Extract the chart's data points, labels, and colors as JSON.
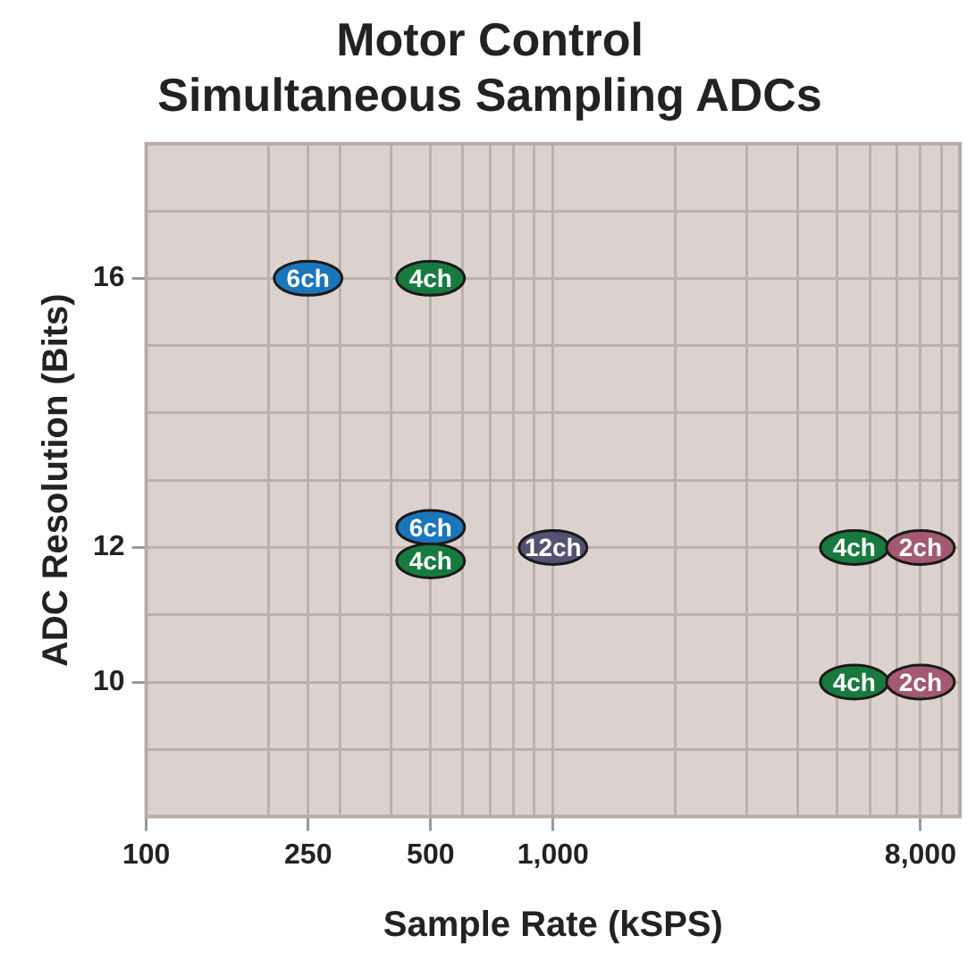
{
  "chart_data": {
    "type": "scatter",
    "title": "Motor Control",
    "subtitle": "Simultaneous Sampling ADCs",
    "xlabel": "Sample Rate (kSPS)",
    "ylabel": "ADC Resolution (Bits)",
    "log": "x",
    "grid": true,
    "legend": false,
    "marker": "circle",
    "xlim": [
      100,
      10000
    ],
    "xticks": [
      100,
      {
        "value": 200,
        "label": null
      },
      250,
      {
        "value": 300,
        "label": null
      },
      {
        "value": 400,
        "label": null
      },
      500,
      {
        "value": 600,
        "label": null
      },
      {
        "value": 700,
        "label": null
      },
      {
        "value": 800,
        "label": null
      },
      {
        "value": 900,
        "label": null
      },
      {
        "value": 1000,
        "label": "1,000"
      },
      {
        "value": 2000,
        "label": null
      },
      {
        "value": 3000,
        "label": null
      },
      {
        "value": 4000,
        "label": null
      },
      {
        "value": 5000,
        "label": null
      },
      {
        "value": 6000,
        "label": null
      },
      {
        "value": 7000,
        "label": null
      },
      {
        "value": 8000,
        "label": "8,000"
      },
      {
        "value": 9000,
        "label": null
      },
      {
        "value": 10000,
        "label": null
      }
    ],
    "ylim": [
      8,
      18
    ],
    "yticks": [
      {
        "value": 8,
        "label": null
      },
      {
        "value": 9,
        "label": null
      },
      10,
      {
        "value": 11,
        "label": null
      },
      12,
      {
        "value": 13,
        "label": null
      },
      {
        "value": 14,
        "label": null
      },
      {
        "value": 15,
        "label": null
      },
      16,
      {
        "value": 17,
        "label": null
      },
      {
        "value": 18,
        "label": null
      }
    ],
    "series": [
      {
        "name": "6ch",
        "color": "#1b75bb",
        "x": [
          250,
          500
        ],
        "values": [
          16,
          12.3
        ]
      },
      {
        "name": "4ch",
        "color": "#177a3f",
        "x": [
          500,
          500,
          5500,
          5500
        ],
        "values": [
          16,
          11.8,
          12,
          10
        ]
      },
      {
        "name": "12ch",
        "color": "#545173",
        "x": [
          1000
        ],
        "values": [
          12
        ]
      },
      {
        "name": "2ch",
        "color": "#a3596f",
        "x": [
          8000,
          8000
        ],
        "values": [
          12,
          10
        ]
      }
    ]
  }
}
